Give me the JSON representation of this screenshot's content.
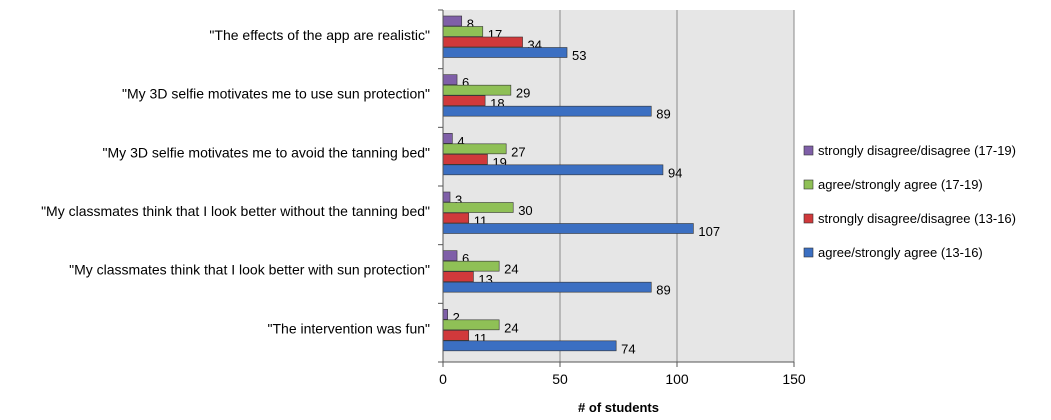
{
  "chart_data": {
    "type": "bar",
    "orientation": "horizontal",
    "categories": [
      "\"The effects of the app are realistic\"",
      "\"My 3D selfie motivates me to use sun protection\"",
      "\"My 3D selfie motivates me to avoid the tanning bed\"",
      "\"My classmates think that I look better without the tanning bed\"",
      "\"My classmates think that I look better with sun protection\"",
      "\"The intervention was fun\""
    ],
    "series": [
      {
        "name": "strongly disagree/disagree (17-19)",
        "color": "#7f5fa8",
        "values": [
          8,
          6,
          4,
          3,
          6,
          2
        ]
      },
      {
        "name": "agree/strongly agree (17-19)",
        "color": "#8fc056",
        "values": [
          17,
          29,
          27,
          30,
          24,
          24
        ]
      },
      {
        "name": "strongly disagree/disagree (13-16)",
        "color": "#d0393b",
        "values": [
          34,
          18,
          19,
          11,
          13,
          11
        ]
      },
      {
        "name": "agree/strongly agree (13-16)",
        "color": "#3b6fc2",
        "values": [
          53,
          89,
          94,
          107,
          89,
          74
        ]
      }
    ],
    "legend_order": [
      0,
      1,
      2,
      3
    ],
    "title": "",
    "xlabel": "# of students",
    "ylabel": "",
    "xlim": [
      0,
      150
    ],
    "xticks": [
      0,
      50,
      100,
      150
    ],
    "grid": true,
    "legend_position": "right"
  }
}
